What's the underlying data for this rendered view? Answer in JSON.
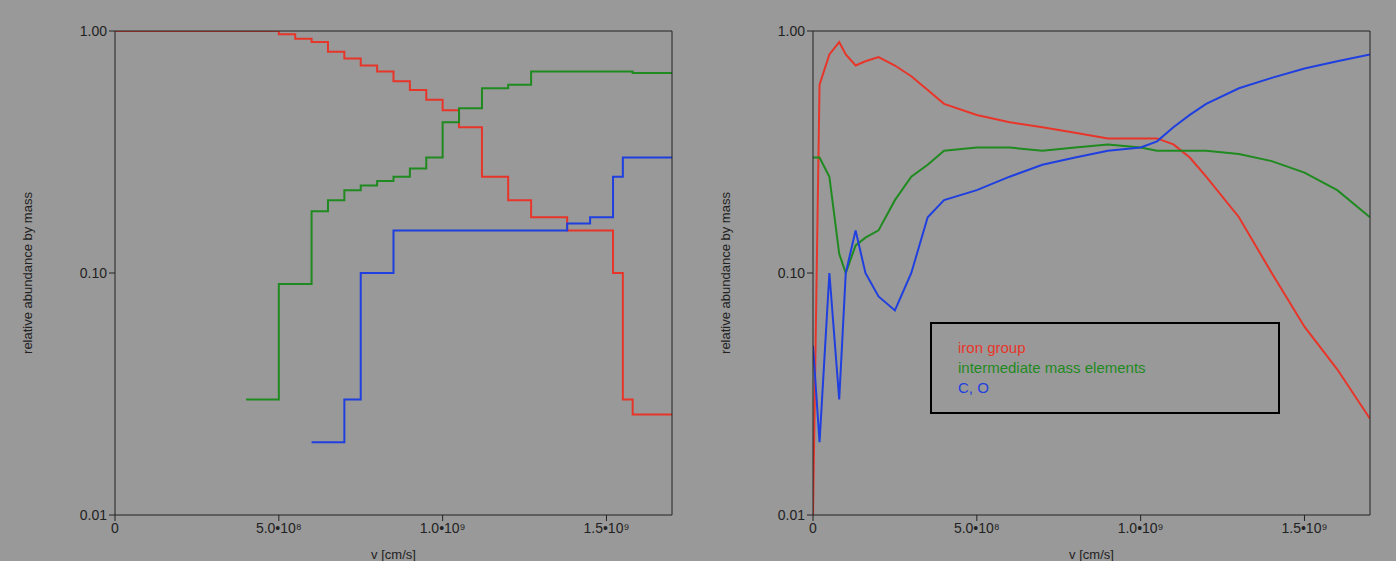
{
  "chart_data": [
    {
      "type": "line",
      "line_style": "step",
      "log": "y",
      "grid": false,
      "x_label": "v [cm/s]",
      "y_label": "relative abundance by mass",
      "xlim": [
        0,
        1700000000
      ],
      "xticks": [
        0,
        {
          "value": 500000000,
          "label": "5.0•10⁸"
        },
        {
          "value": 1000000000,
          "label": "1.0•10⁹"
        },
        {
          "value": 1500000000,
          "label": "1.5•10⁹"
        }
      ],
      "ylim": [
        0.01,
        1
      ],
      "yticks": [
        0.01,
        {
          "value": 0.1,
          "label": "0.10"
        },
        {
          "value": 1,
          "label": "1.00"
        }
      ],
      "x": [
        0,
        200000000,
        400000000,
        450000000,
        500000000,
        550000000,
        600000000,
        650000000,
        700000000,
        750000000,
        800000000,
        850000000,
        900000000,
        950000000,
        1000000000,
        1050000000,
        1120000000,
        1200000000,
        1270000000,
        1380000000,
        1450000000,
        1520000000,
        1550000000,
        1580000000,
        1700000000
      ],
      "series": [
        {
          "color": "#e8352a",
          "values": [
            1.0,
            1.0,
            1.0,
            1.0,
            0.97,
            0.93,
            0.9,
            0.82,
            0.77,
            0.72,
            0.68,
            0.62,
            0.57,
            0.52,
            0.47,
            0.4,
            0.25,
            0.2,
            0.17,
            0.15,
            0.15,
            0.1,
            0.03,
            0.026,
            0.026
          ]
        },
        {
          "color": "#1f8a1f",
          "values": [
            null,
            null,
            0.03,
            0.03,
            0.09,
            0.09,
            0.18,
            0.2,
            0.22,
            0.23,
            0.24,
            0.25,
            0.27,
            0.3,
            0.42,
            0.48,
            0.58,
            0.6,
            0.68,
            0.68,
            0.68,
            0.68,
            0.68,
            0.67,
            0.67
          ]
        },
        {
          "color": "#1f3fe0",
          "values": [
            null,
            null,
            null,
            null,
            null,
            null,
            0.02,
            0.02,
            0.03,
            0.1,
            0.1,
            0.15,
            0.15,
            0.15,
            0.15,
            0.15,
            0.15,
            0.15,
            0.15,
            0.16,
            0.17,
            0.25,
            0.3,
            0.3,
            0.3
          ]
        }
      ]
    },
    {
      "type": "line",
      "line_style": "solid",
      "log": "y",
      "grid": false,
      "legend": "lower right",
      "x_label": "v [cm/s]",
      "y_label": "relative abundance by mass",
      "xlim": [
        0,
        1700000000
      ],
      "xticks": [
        0,
        {
          "value": 500000000,
          "label": "5.0•10⁸"
        },
        {
          "value": 1000000000,
          "label": "1.0•10⁹"
        },
        {
          "value": 1500000000,
          "label": "1.5•10⁹"
        }
      ],
      "ylim": [
        0.01,
        1
      ],
      "yticks": [
        0.01,
        {
          "value": 0.1,
          "label": "0.10"
        },
        {
          "value": 1,
          "label": "1.00"
        }
      ],
      "x": [
        0,
        20000000,
        50000000,
        80000000,
        100000000,
        130000000,
        160000000,
        200000000,
        250000000,
        300000000,
        350000000,
        400000000,
        500000000,
        600000000,
        700000000,
        800000000,
        900000000,
        1000000000,
        1050000000,
        1100000000,
        1150000000,
        1200000000,
        1300000000,
        1400000000,
        1500000000,
        1600000000,
        1700000000
      ],
      "series": [
        {
          "name": "iron group",
          "color": "#e8352a",
          "values": [
            0.01,
            0.6,
            0.8,
            0.9,
            0.8,
            0.72,
            0.75,
            0.78,
            0.72,
            0.65,
            0.57,
            0.5,
            0.45,
            0.42,
            0.4,
            0.38,
            0.36,
            0.36,
            0.36,
            0.34,
            0.3,
            0.25,
            0.17,
            0.1,
            0.06,
            0.04,
            0.025
          ]
        },
        {
          "name": "intermediate mass elements",
          "color": "#1f8a1f",
          "values": [
            0.3,
            0.3,
            0.25,
            0.12,
            0.1,
            0.13,
            0.14,
            0.15,
            0.2,
            0.25,
            0.28,
            0.32,
            0.33,
            0.33,
            0.32,
            0.33,
            0.34,
            0.33,
            0.32,
            0.32,
            0.32,
            0.32,
            0.31,
            0.29,
            0.26,
            0.22,
            0.17
          ]
        },
        {
          "name": "C, O",
          "color": "#1f3fe0",
          "values": [
            0.05,
            0.02,
            0.1,
            0.03,
            0.1,
            0.15,
            0.1,
            0.08,
            0.07,
            0.1,
            0.17,
            0.2,
            0.22,
            0.25,
            0.28,
            0.3,
            0.32,
            0.33,
            0.35,
            0.4,
            0.45,
            0.5,
            0.58,
            0.64,
            0.7,
            0.75,
            0.8
          ]
        }
      ]
    }
  ]
}
